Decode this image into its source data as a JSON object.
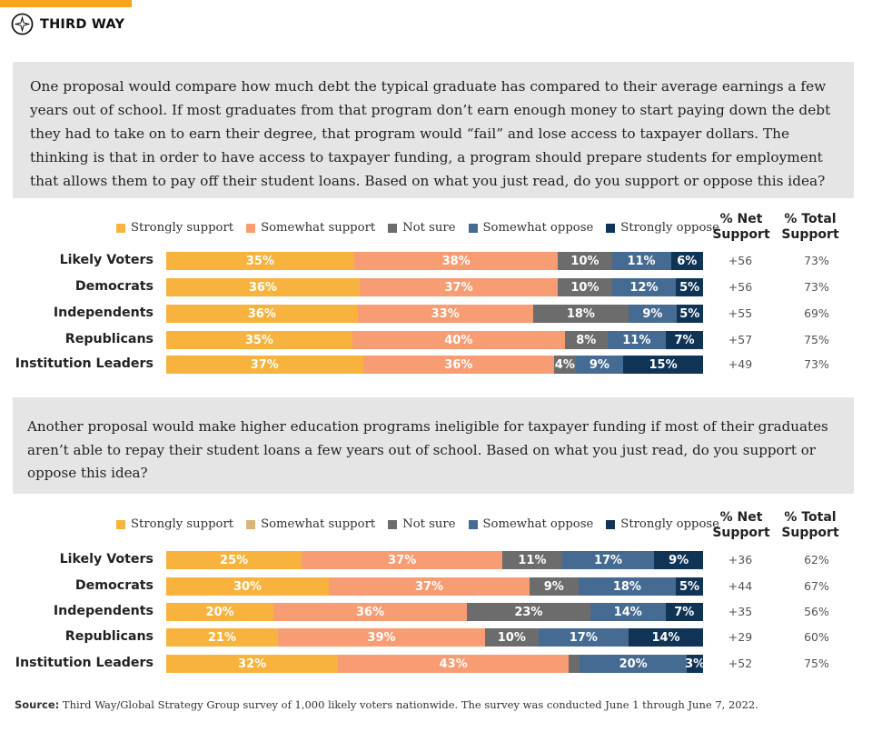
{
  "brand": {
    "name": "THIRD WAY",
    "accent_color": "#f7a51c"
  },
  "colors": {
    "strongly_support": "#f7b33e",
    "somewhat_support": "#f89c74",
    "not_sure": "#6c6c6c",
    "somewhat_oppose": "#466b92",
    "strongly_oppose": "#0f3456",
    "legend2_somewhat_support": "#d7b678"
  },
  "questions": [
    "One proposal would compare how much debt the typical graduate has compared to their average earnings a few years out of school. If most graduates from that program don’t earn enough money to start paying down the debt they had to take on to earn their degree, that program would “fail” and lose access to taxpayer dollars. The thinking is that in order to have access to taxpayer funding, a program should prepare students for employment that allows them to pay off their student loans. Based on what you just read, do you support or oppose this idea?",
    "Another proposal would make higher education programs ineligible for taxpayer funding if most of their graduates aren’t able to repay their student loans a few years out of school. Based on what you just read, do you support or oppose this idea?"
  ],
  "legend": [
    "Strongly support",
    "Somewhat support",
    "Not sure",
    "Somewhat oppose",
    "Strongly oppose"
  ],
  "col_headers": {
    "net": "% Net Support",
    "total": "% Total Support"
  },
  "chart_data": [
    {
      "type": "bar",
      "orientation": "horizontal",
      "stacked": true,
      "categories": [
        "Likely Voters",
        "Democrats",
        "Independents",
        "Republicans",
        "Institution Leaders"
      ],
      "series": [
        {
          "name": "Strongly support",
          "values": [
            35,
            36,
            36,
            35,
            37
          ]
        },
        {
          "name": "Somewhat support",
          "values": [
            38,
            37,
            33,
            40,
            36
          ]
        },
        {
          "name": "Not sure",
          "values": [
            10,
            10,
            18,
            8,
            4
          ]
        },
        {
          "name": "Somewhat oppose",
          "values": [
            11,
            12,
            9,
            11,
            9
          ]
        },
        {
          "name": "Strongly oppose",
          "values": [
            6,
            5,
            5,
            7,
            15
          ]
        }
      ],
      "net_support": [
        "+56",
        "+56",
        "+55",
        "+57",
        "+49"
      ],
      "total_support": [
        "73%",
        "73%",
        "69%",
        "75%",
        "73%"
      ]
    },
    {
      "type": "bar",
      "orientation": "horizontal",
      "stacked": true,
      "categories": [
        "Likely Voters",
        "Democrats",
        "Independents",
        "Republicans",
        "Institution Leaders"
      ],
      "series": [
        {
          "name": "Strongly support",
          "values": [
            25,
            30,
            20,
            21,
            32
          ]
        },
        {
          "name": "Somewhat support",
          "values": [
            37,
            37,
            36,
            39,
            43
          ]
        },
        {
          "name": "Not sure",
          "values": [
            11,
            9,
            23,
            10,
            2
          ]
        },
        {
          "name": "Somewhat oppose",
          "values": [
            17,
            18,
            14,
            17,
            20
          ]
        },
        {
          "name": "Strongly oppose",
          "values": [
            9,
            5,
            7,
            14,
            3
          ]
        }
      ],
      "net_support": [
        "+36",
        "+44",
        "+35",
        "+29",
        "+52"
      ],
      "total_support": [
        "62%",
        "67%",
        "56%",
        "60%",
        "75%"
      ]
    }
  ],
  "footer": {
    "label": "Source:",
    "text": "Third Way/Global Strategy Group survey of 1,000 likely voters nationwide. The survey was conducted June 1 through June 7, 2022."
  }
}
